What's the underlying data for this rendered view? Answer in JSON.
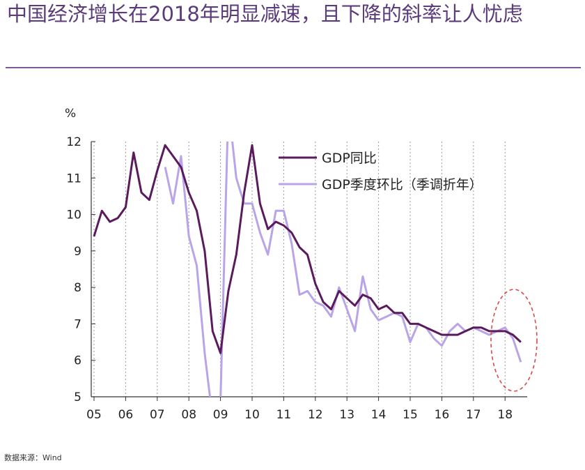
{
  "title": "中国经济增长在2018年明显减速，且下降的斜率让人忧虑",
  "source": "数据来源：Wind",
  "colors": {
    "title": "#5b3b7a",
    "series_yoy": "#5a1a5c",
    "series_qoq": "#b9a4ea",
    "highlight": "#d84a4a"
  },
  "chart_data": {
    "type": "line",
    "unit_label": "%",
    "ylim": [
      5,
      12
    ],
    "yticks": [
      5,
      6,
      7,
      8,
      9,
      10,
      11,
      12
    ],
    "xlim": [
      2005,
      2018.75
    ],
    "xtick_values": [
      2005,
      2006,
      2007,
      2008,
      2009,
      2010,
      2011,
      2012,
      2013,
      2014,
      2015,
      2016,
      2017,
      2018
    ],
    "xtick_labels": [
      "05",
      "06",
      "07",
      "08",
      "09",
      "10",
      "11",
      "12",
      "13",
      "14",
      "15",
      "16",
      "17",
      "18"
    ],
    "grid": "vertical gridlines at each year",
    "legend_position": "top-right",
    "series": [
      {
        "name": "GDP同比",
        "points": [
          [
            2005.0,
            9.4
          ],
          [
            2005.25,
            10.1
          ],
          [
            2005.5,
            9.8
          ],
          [
            2005.75,
            9.9
          ],
          [
            2006.0,
            10.2
          ],
          [
            2006.25,
            11.7
          ],
          [
            2006.5,
            10.6
          ],
          [
            2006.75,
            10.4
          ],
          [
            2007.0,
            11.2
          ],
          [
            2007.25,
            11.9
          ],
          [
            2007.5,
            11.6
          ],
          [
            2007.75,
            11.3
          ],
          [
            2008.0,
            10.6
          ],
          [
            2008.25,
            10.1
          ],
          [
            2008.5,
            9.0
          ],
          [
            2008.75,
            6.8
          ],
          [
            2009.0,
            6.2
          ],
          [
            2009.25,
            7.9
          ],
          [
            2009.5,
            8.9
          ],
          [
            2009.75,
            10.6
          ],
          [
            2010.0,
            11.9
          ],
          [
            2010.25,
            10.3
          ],
          [
            2010.5,
            9.6
          ],
          [
            2010.75,
            9.8
          ],
          [
            2011.0,
            9.7
          ],
          [
            2011.25,
            9.5
          ],
          [
            2011.5,
            9.1
          ],
          [
            2011.75,
            8.9
          ],
          [
            2012.0,
            8.1
          ],
          [
            2012.25,
            7.6
          ],
          [
            2012.5,
            7.4
          ],
          [
            2012.75,
            7.9
          ],
          [
            2013.0,
            7.7
          ],
          [
            2013.25,
            7.5
          ],
          [
            2013.5,
            7.8
          ],
          [
            2013.75,
            7.7
          ],
          [
            2014.0,
            7.4
          ],
          [
            2014.25,
            7.5
          ],
          [
            2014.5,
            7.3
          ],
          [
            2014.75,
            7.3
          ],
          [
            2015.0,
            7.0
          ],
          [
            2015.25,
            7.0
          ],
          [
            2015.5,
            6.9
          ],
          [
            2015.75,
            6.8
          ],
          [
            2016.0,
            6.7
          ],
          [
            2016.25,
            6.7
          ],
          [
            2016.5,
            6.7
          ],
          [
            2016.75,
            6.8
          ],
          [
            2017.0,
            6.9
          ],
          [
            2017.25,
            6.9
          ],
          [
            2017.5,
            6.8
          ],
          [
            2017.75,
            6.8
          ],
          [
            2018.0,
            6.8
          ],
          [
            2018.25,
            6.7
          ],
          [
            2018.5,
            6.5
          ]
        ]
      },
      {
        "name": "GDP季度环比（季调折年）",
        "points": [
          [
            2007.25,
            11.3
          ],
          [
            2007.5,
            10.3
          ],
          [
            2007.75,
            11.6
          ],
          [
            2008.0,
            9.4
          ],
          [
            2008.25,
            8.6
          ],
          [
            2008.5,
            6.2
          ],
          [
            2008.75,
            4.4
          ],
          [
            2009.0,
            4.9
          ],
          [
            2009.25,
            13.0
          ],
          [
            2009.5,
            11.0
          ],
          [
            2009.75,
            10.3
          ],
          [
            2010.0,
            10.3
          ],
          [
            2010.25,
            9.5
          ],
          [
            2010.5,
            8.9
          ],
          [
            2010.75,
            10.1
          ],
          [
            2011.0,
            10.1
          ],
          [
            2011.25,
            9.2
          ],
          [
            2011.5,
            7.8
          ],
          [
            2011.75,
            7.9
          ],
          [
            2012.0,
            7.6
          ],
          [
            2012.25,
            7.5
          ],
          [
            2012.5,
            7.2
          ],
          [
            2012.75,
            8.0
          ],
          [
            2013.0,
            7.4
          ],
          [
            2013.25,
            6.8
          ],
          [
            2013.5,
            8.3
          ],
          [
            2013.75,
            7.4
          ],
          [
            2014.0,
            7.1
          ],
          [
            2014.25,
            7.2
          ],
          [
            2014.5,
            7.3
          ],
          [
            2014.75,
            7.2
          ],
          [
            2015.0,
            6.5
          ],
          [
            2015.25,
            7.0
          ],
          [
            2015.5,
            6.9
          ],
          [
            2015.75,
            6.6
          ],
          [
            2016.0,
            6.4
          ],
          [
            2016.25,
            6.8
          ],
          [
            2016.5,
            7.0
          ],
          [
            2016.75,
            6.8
          ],
          [
            2017.0,
            6.9
          ],
          [
            2017.25,
            6.8
          ],
          [
            2017.5,
            6.7
          ],
          [
            2017.75,
            6.8
          ],
          [
            2018.0,
            6.9
          ],
          [
            2018.25,
            6.6
          ],
          [
            2018.5,
            5.95
          ]
        ]
      }
    ],
    "annotation": "dashed ellipse highlighting 2018"
  }
}
